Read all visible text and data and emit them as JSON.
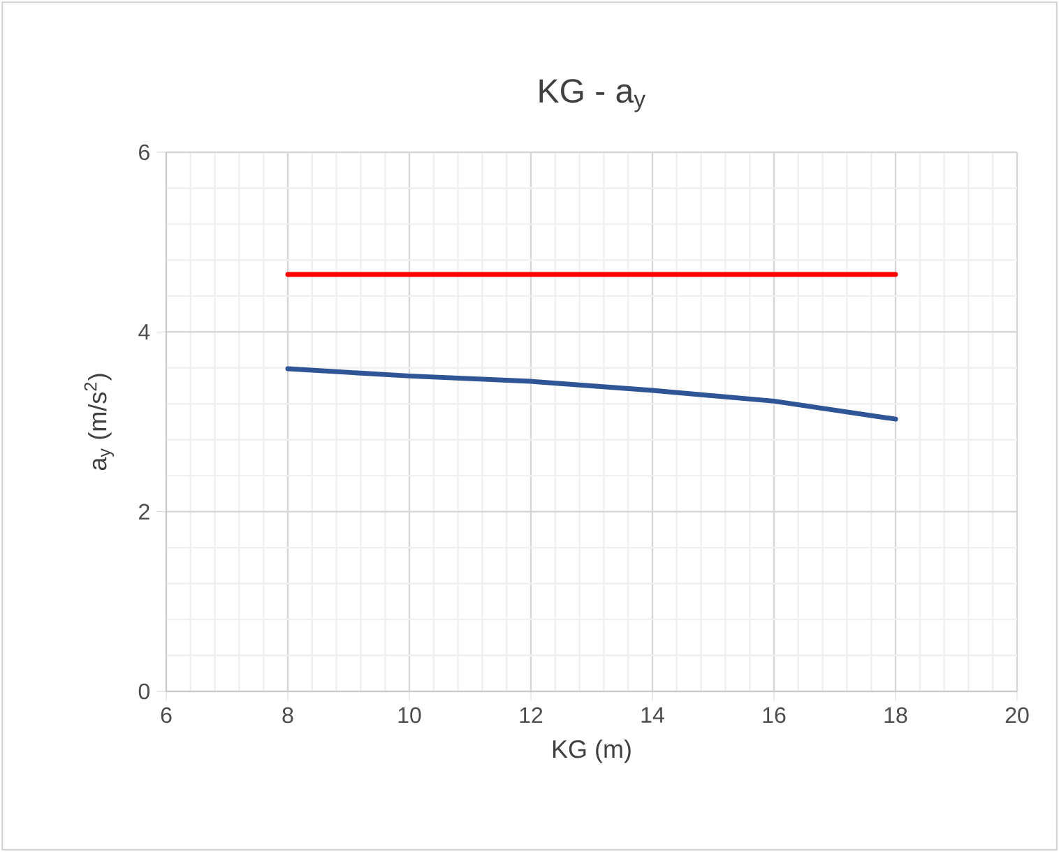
{
  "chart_data": {
    "type": "line",
    "title": "KG - a$_{y}$",
    "xlabel": "KG (m)",
    "ylabel": "a$_{y}$ (m/s$^{2}$)",
    "x": [
      8,
      10,
      12,
      14,
      16,
      18
    ],
    "series": [
      {
        "color": "#ff0000",
        "values": [
          4.64,
          4.64,
          4.64,
          4.64,
          4.64,
          4.64
        ]
      },
      {
        "color": "#2f5597",
        "values": [
          3.59,
          3.51,
          3.45,
          3.35,
          3.23,
          3.03
        ]
      }
    ],
    "xlim": [
      6,
      20
    ],
    "xticks": [
      6,
      8,
      10,
      12,
      14,
      16,
      18,
      20
    ],
    "ylim": [
      0,
      6
    ],
    "yticks": [
      0,
      2,
      4,
      6
    ],
    "grid": true,
    "marker": "none",
    "line_style": "solid"
  }
}
